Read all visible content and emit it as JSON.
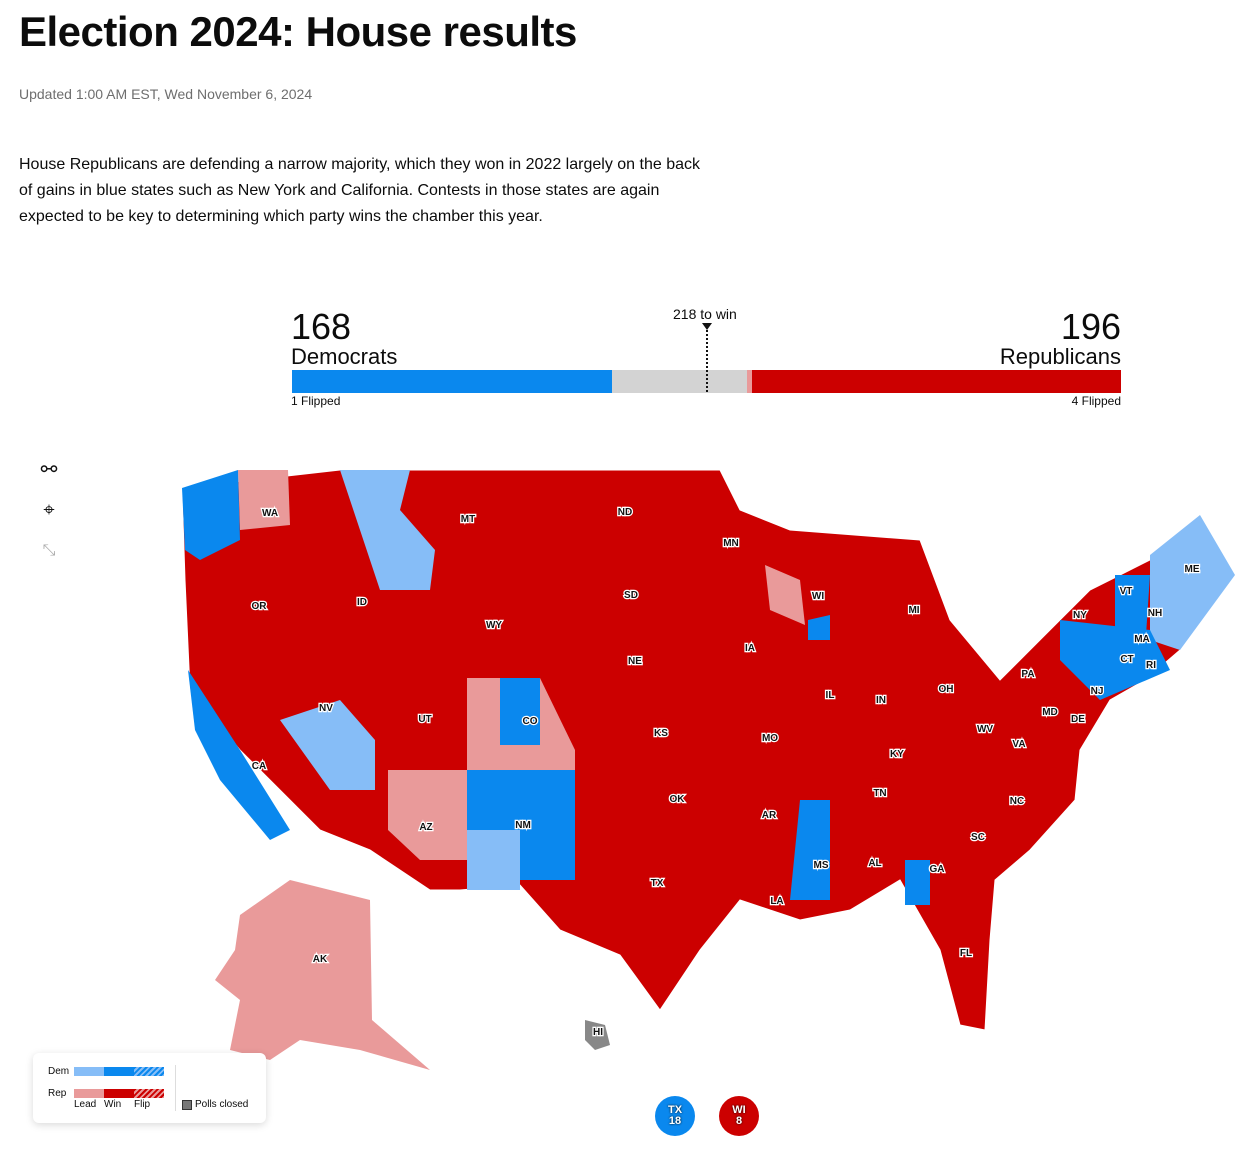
{
  "title": "Election 2024: House results",
  "updated": "Updated 1:00 AM EST, Wed November 6, 2024",
  "intro": "House Republicans are defending a narrow majority, which they won in 2022 largely on the back of gains in blue states such as New York and California. Contests in those states are again expected to be key to determining which party wins the chamber this year.",
  "tally": {
    "dem": {
      "seats": "168",
      "label": "Democrats",
      "flipped": "1 Flipped",
      "color": "#0a88ee"
    },
    "rep": {
      "seats": "196",
      "label": "Republicans",
      "flipped": "4 Flipped",
      "color": "#cc0000"
    },
    "to_win": "218 to win",
    "total_seats": 435,
    "threshold": 218
  },
  "controls": [
    {
      "icon": "filter-icon"
    },
    {
      "icon": "location-pin-icon"
    },
    {
      "icon": "collapse-icon"
    }
  ],
  "map": {
    "state_labels": [
      "WA",
      "MT",
      "ND",
      "MN",
      "ME",
      "VT",
      "NH",
      "MA",
      "CT",
      "RI",
      "NY",
      "OR",
      "ID",
      "SD",
      "WI",
      "MI",
      "WY",
      "NE",
      "IA",
      "PA",
      "NJ",
      "OH",
      "IN",
      "IL",
      "NV",
      "UT",
      "CO",
      "KS",
      "MO",
      "MD",
      "DE",
      "WV",
      "VA",
      "KY",
      "CA",
      "TN",
      "NC",
      "OK",
      "AR",
      "SC",
      "AZ",
      "NM",
      "MS",
      "AL",
      "GA",
      "TX",
      "LA",
      "FL",
      "AK",
      "HI"
    ]
  },
  "legend": {
    "dem": "Dem",
    "rep": "Rep",
    "lead": "Lead",
    "win": "Win",
    "flip": "Flip",
    "polls_closed": "Polls closed",
    "colors": {
      "dem_lead": "#86bdf7",
      "dem_win": "#0a88ee",
      "rep_lead": "#e99a9a",
      "rep_win": "#cc0000",
      "polls_closed": "#777777"
    }
  },
  "bubbles": [
    {
      "state": "TX",
      "district": "18",
      "party": "dem"
    },
    {
      "state": "WI",
      "district": "8",
      "party": "rep"
    }
  ]
}
